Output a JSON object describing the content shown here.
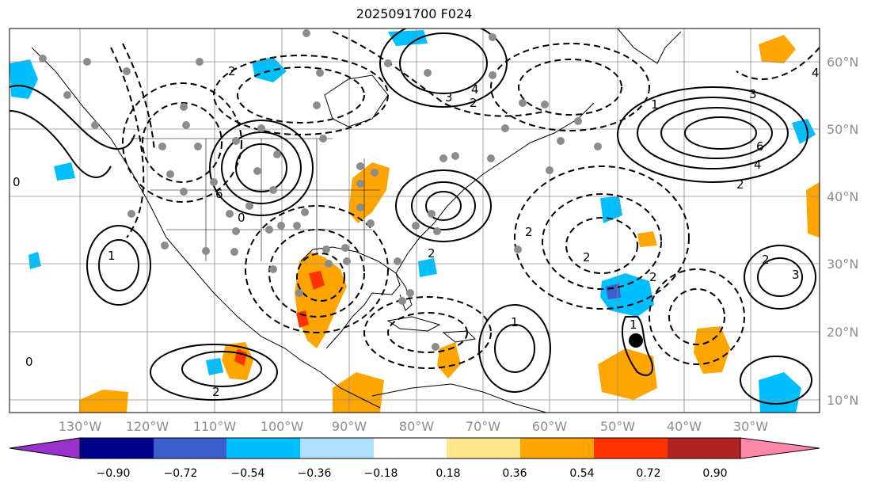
{
  "title": "2025091700 F024",
  "map": {
    "lon_labels": [
      "130°W",
      "120°W",
      "110°W",
      "100°W",
      "90°W",
      "80°W",
      "70°W",
      "60°W",
      "50°W",
      "40°W",
      "30°W"
    ],
    "lat_labels": [
      "60°N",
      "50°N",
      "40°N",
      "30°N",
      "20°N",
      "10°N"
    ]
  },
  "contour_labels": [
    "6",
    "4",
    "3",
    "2",
    "2",
    "1",
    "0",
    "0",
    "2",
    "1",
    "3",
    "4",
    "6",
    "4",
    "2",
    "2",
    "2",
    "2",
    "3",
    "1",
    "1",
    "2",
    "2",
    "0"
  ],
  "colorbar": {
    "ticks": [
      "−0.90",
      "−0.72",
      "−0.54",
      "−0.36",
      "−0.18",
      "0.18",
      "0.36",
      "0.54",
      "0.72",
      "0.90"
    ],
    "colors": [
      "#9932cc",
      "#00008b",
      "#3a5fcd",
      "#00bfff",
      "#b0e0ff",
      "#ffffff",
      "#ffe68c",
      "#ffa500",
      "#ff3300",
      "#b22222",
      "#ff88aa"
    ]
  },
  "colors": {
    "frame": "#000000",
    "grid": "#8c8c8c",
    "orange": "#ffa500",
    "red": "#ff3300",
    "blue": "#00bfff",
    "marker": "#8c8c8c"
  }
}
